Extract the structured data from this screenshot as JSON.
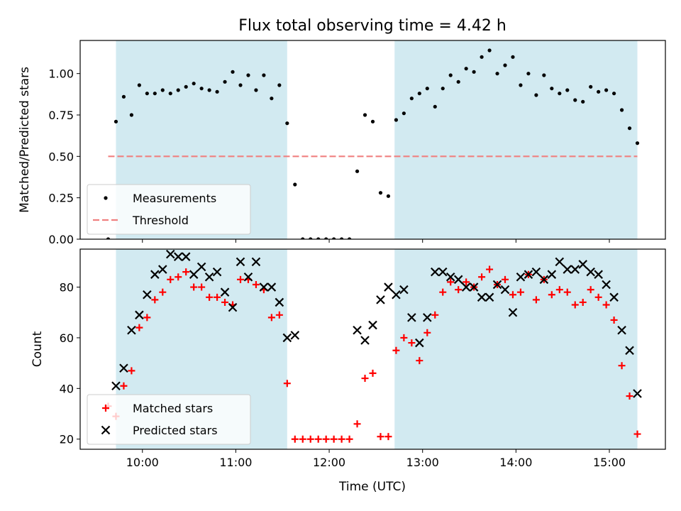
{
  "title": "Flux total observing time = 4.42 h",
  "xlabel": "Time (UTC)",
  "colors": {
    "shade": "#add8e6",
    "measurement": "#000000",
    "threshold": "#f08080",
    "matched": "#ff0000",
    "predicted": "#000000"
  },
  "chart_data": [
    {
      "type": "scatter",
      "ylabel": "Matched/Predicted stars",
      "xlim": [
        "09:20",
        "15:36"
      ],
      "ylim": [
        0,
        1.2
      ],
      "xticks": [
        "10:00",
        "11:00",
        "12:00",
        "13:00",
        "14:00",
        "15:00"
      ],
      "yticks": [
        "0.00",
        "0.25",
        "0.50",
        "0.75",
        "1.00"
      ],
      "legend": {
        "placement": "lower-left",
        "entries": [
          "Measurements",
          "Threshold"
        ]
      },
      "shaded_intervals": [
        [
          "09:43",
          "11:33"
        ],
        [
          "12:42",
          "15:18"
        ]
      ],
      "threshold": {
        "name": "Threshold",
        "y": 0.5,
        "x": [
          "09:38",
          "15:18"
        ]
      },
      "series": [
        {
          "name": "Measurements",
          "marker": "dot",
          "points": [
            [
              "09:38",
              0.0
            ],
            [
              "09:43",
              0.71
            ],
            [
              "09:48",
              0.86
            ],
            [
              "09:53",
              0.75
            ],
            [
              "09:58",
              0.93
            ],
            [
              "10:03",
              0.88
            ],
            [
              "10:08",
              0.88
            ],
            [
              "10:13",
              0.9
            ],
            [
              "10:18",
              0.88
            ],
            [
              "10:23",
              0.9
            ],
            [
              "10:28",
              0.92
            ],
            [
              "10:33",
              0.94
            ],
            [
              "10:38",
              0.91
            ],
            [
              "10:43",
              0.9
            ],
            [
              "10:48",
              0.89
            ],
            [
              "10:53",
              0.95
            ],
            [
              "10:58",
              1.01
            ],
            [
              "11:03",
              0.93
            ],
            [
              "11:08",
              0.99
            ],
            [
              "11:13",
              0.9
            ],
            [
              "11:18",
              0.99
            ],
            [
              "11:23",
              0.85
            ],
            [
              "11:28",
              0.93
            ],
            [
              "11:33",
              0.7
            ],
            [
              "11:38",
              0.33
            ],
            [
              "11:43",
              0.0
            ],
            [
              "11:48",
              0.0
            ],
            [
              "11:53",
              0.0
            ],
            [
              "11:58",
              0.0
            ],
            [
              "12:03",
              0.0
            ],
            [
              "12:08",
              0.0
            ],
            [
              "12:13",
              0.0
            ],
            [
              "12:18",
              0.41
            ],
            [
              "12:23",
              0.75
            ],
            [
              "12:28",
              0.71
            ],
            [
              "12:33",
              0.28
            ],
            [
              "12:38",
              0.26
            ],
            [
              "12:43",
              0.72
            ],
            [
              "12:48",
              0.76
            ],
            [
              "12:53",
              0.85
            ],
            [
              "12:58",
              0.88
            ],
            [
              "13:03",
              0.91
            ],
            [
              "13:08",
              0.8
            ],
            [
              "13:13",
              0.91
            ],
            [
              "13:18",
              0.99
            ],
            [
              "13:23",
              0.95
            ],
            [
              "13:28",
              1.03
            ],
            [
              "13:33",
              1.01
            ],
            [
              "13:38",
              1.1
            ],
            [
              "13:43",
              1.14
            ],
            [
              "13:48",
              1.0
            ],
            [
              "13:53",
              1.05
            ],
            [
              "13:58",
              1.1
            ],
            [
              "14:03",
              0.93
            ],
            [
              "14:08",
              1.0
            ],
            [
              "14:13",
              0.87
            ],
            [
              "14:18",
              0.99
            ],
            [
              "14:23",
              0.91
            ],
            [
              "14:28",
              0.88
            ],
            [
              "14:33",
              0.9
            ],
            [
              "14:38",
              0.84
            ],
            [
              "14:43",
              0.83
            ],
            [
              "14:48",
              0.92
            ],
            [
              "14:53",
              0.89
            ],
            [
              "14:58",
              0.9
            ],
            [
              "15:03",
              0.88
            ],
            [
              "15:08",
              0.78
            ],
            [
              "15:13",
              0.67
            ],
            [
              "15:18",
              0.58
            ]
          ]
        }
      ]
    },
    {
      "type": "scatter",
      "ylabel": "Count",
      "xlim": [
        "09:20",
        "15:36"
      ],
      "ylim": [
        16,
        95
      ],
      "xticks": [
        "10:00",
        "11:00",
        "12:00",
        "13:00",
        "14:00",
        "15:00"
      ],
      "yticks": [
        "20",
        "40",
        "60",
        "80"
      ],
      "legend": {
        "placement": "lower-left",
        "entries": [
          "Matched stars",
          "Predicted stars"
        ]
      },
      "shaded_intervals": [
        [
          "09:43",
          "11:33"
        ],
        [
          "12:42",
          "15:18"
        ]
      ],
      "series": [
        {
          "name": "Matched stars",
          "marker": "plus",
          "points": [
            [
              "09:38",
              33
            ],
            [
              "09:43",
              29
            ],
            [
              "09:48",
              41
            ],
            [
              "09:53",
              47
            ],
            [
              "09:58",
              64
            ],
            [
              "10:03",
              68
            ],
            [
              "10:08",
              75
            ],
            [
              "10:13",
              78
            ],
            [
              "10:18",
              83
            ],
            [
              "10:23",
              84
            ],
            [
              "10:28",
              86
            ],
            [
              "10:33",
              80
            ],
            [
              "10:38",
              80
            ],
            [
              "10:43",
              76
            ],
            [
              "10:48",
              76
            ],
            [
              "10:53",
              74
            ],
            [
              "10:58",
              73
            ],
            [
              "11:03",
              83
            ],
            [
              "11:08",
              83
            ],
            [
              "11:13",
              81
            ],
            [
              "11:18",
              79
            ],
            [
              "11:23",
              68
            ],
            [
              "11:28",
              69
            ],
            [
              "11:33",
              42
            ],
            [
              "11:38",
              20
            ],
            [
              "11:43",
              20
            ],
            [
              "11:48",
              20
            ],
            [
              "11:53",
              20
            ],
            [
              "11:58",
              20
            ],
            [
              "12:03",
              20
            ],
            [
              "12:08",
              20
            ],
            [
              "12:13",
              20
            ],
            [
              "12:18",
              26
            ],
            [
              "12:23",
              44
            ],
            [
              "12:28",
              46
            ],
            [
              "12:33",
              21
            ],
            [
              "12:38",
              21
            ],
            [
              "12:43",
              55
            ],
            [
              "12:48",
              60
            ],
            [
              "12:53",
              58
            ],
            [
              "12:58",
              51
            ],
            [
              "13:03",
              62
            ],
            [
              "13:08",
              69
            ],
            [
              "13:13",
              78
            ],
            [
              "13:18",
              82
            ],
            [
              "13:23",
              79
            ],
            [
              "13:28",
              82
            ],
            [
              "13:33",
              80
            ],
            [
              "13:38",
              84
            ],
            [
              "13:43",
              87
            ],
            [
              "13:48",
              81
            ],
            [
              "13:53",
              83
            ],
            [
              "13:58",
              77
            ],
            [
              "14:03",
              78
            ],
            [
              "14:08",
              85
            ],
            [
              "14:13",
              75
            ],
            [
              "14:18",
              83
            ],
            [
              "14:23",
              77
            ],
            [
              "14:28",
              79
            ],
            [
              "14:33",
              78
            ],
            [
              "14:38",
              73
            ],
            [
              "14:43",
              74
            ],
            [
              "14:48",
              79
            ],
            [
              "14:53",
              76
            ],
            [
              "14:58",
              73
            ],
            [
              "15:03",
              67
            ],
            [
              "15:08",
              49
            ],
            [
              "15:13",
              37
            ],
            [
              "15:18",
              22
            ]
          ]
        },
        {
          "name": "Predicted stars",
          "marker": "x",
          "points": [
            [
              "09:43",
              41
            ],
            [
              "09:48",
              48
            ],
            [
              "09:53",
              63
            ],
            [
              "09:58",
              69
            ],
            [
              "10:03",
              77
            ],
            [
              "10:08",
              85
            ],
            [
              "10:13",
              87
            ],
            [
              "10:18",
              93
            ],
            [
              "10:23",
              92
            ],
            [
              "10:28",
              92
            ],
            [
              "10:33",
              85
            ],
            [
              "10:38",
              88
            ],
            [
              "10:43",
              84
            ],
            [
              "10:48",
              86
            ],
            [
              "10:53",
              78
            ],
            [
              "10:58",
              72
            ],
            [
              "11:03",
              90
            ],
            [
              "11:08",
              84
            ],
            [
              "11:13",
              90
            ],
            [
              "11:18",
              80
            ],
            [
              "11:23",
              80
            ],
            [
              "11:28",
              74
            ],
            [
              "11:33",
              60
            ],
            [
              "11:38",
              61
            ],
            [
              "12:18",
              63
            ],
            [
              "12:23",
              59
            ],
            [
              "12:28",
              65
            ],
            [
              "12:33",
              75
            ],
            [
              "12:38",
              80
            ],
            [
              "12:43",
              77
            ],
            [
              "12:48",
              79
            ],
            [
              "12:53",
              68
            ],
            [
              "12:58",
              58
            ],
            [
              "13:03",
              68
            ],
            [
              "13:08",
              86
            ],
            [
              "13:13",
              86
            ],
            [
              "13:18",
              84
            ],
            [
              "13:23",
              83
            ],
            [
              "13:28",
              80
            ],
            [
              "13:33",
              80
            ],
            [
              "13:38",
              76
            ],
            [
              "13:43",
              76
            ],
            [
              "13:48",
              81
            ],
            [
              "13:53",
              79
            ],
            [
              "13:58",
              70
            ],
            [
              "14:03",
              84
            ],
            [
              "14:08",
              85
            ],
            [
              "14:13",
              86
            ],
            [
              "14:18",
              83
            ],
            [
              "14:23",
              85
            ],
            [
              "14:28",
              90
            ],
            [
              "14:33",
              87
            ],
            [
              "14:38",
              87
            ],
            [
              "14:43",
              89
            ],
            [
              "14:48",
              86
            ],
            [
              "14:53",
              85
            ],
            [
              "14:58",
              81
            ],
            [
              "15:03",
              76
            ],
            [
              "15:08",
              63
            ],
            [
              "15:13",
              55
            ],
            [
              "15:18",
              38
            ]
          ]
        }
      ]
    }
  ]
}
